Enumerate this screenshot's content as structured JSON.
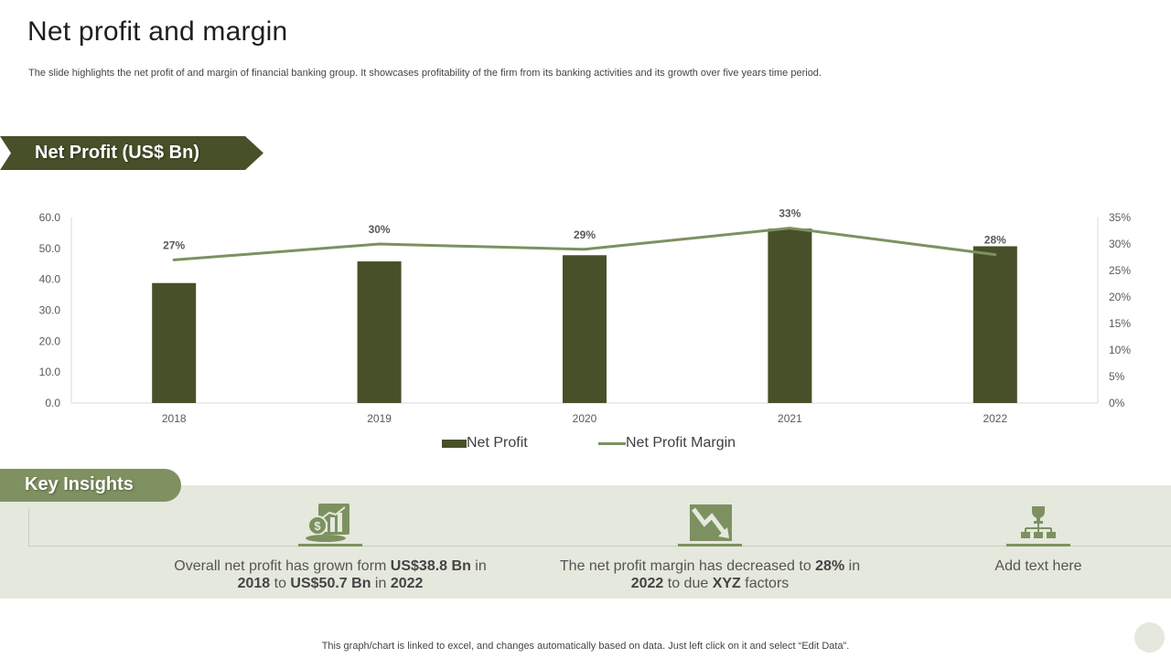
{
  "header": {
    "title": "Net profit and margin",
    "subtitle": "The slide highlights the net profit of and margin of financial banking group. It showcases profitability of the firm from its banking activities and its growth over five years time period."
  },
  "section": {
    "banner": "Net Profit (US$ Bn)"
  },
  "chart_data": {
    "type": "bar",
    "categories": [
      "2018",
      "2019",
      "2020",
      "2021",
      "2022"
    ],
    "series": [
      {
        "name": "Net Profit",
        "type": "bar",
        "axis": "left",
        "values": [
          38.8,
          45.8,
          47.8,
          56.4,
          50.7
        ],
        "color": "#475029"
      },
      {
        "name": "Net Profit Margin",
        "type": "line",
        "axis": "right",
        "values": [
          27,
          30,
          29,
          33,
          28
        ],
        "color": "#7d9160"
      }
    ],
    "data_labels": [
      "27%",
      "30%",
      "29%",
      "33%",
      "28%"
    ],
    "y_left": {
      "ticks": [
        "0.0",
        "10.0",
        "20.0",
        "30.0",
        "40.0",
        "50.0",
        "60.0"
      ],
      "lim": [
        0,
        60
      ]
    },
    "y_right": {
      "ticks": [
        "0%",
        "5%",
        "10%",
        "15%",
        "20%",
        "25%",
        "30%",
        "35%"
      ],
      "lim": [
        0,
        35
      ]
    },
    "grid": false,
    "legend": "bottom-center"
  },
  "insights": {
    "title": "Key Insights",
    "items": [
      {
        "icon": "money-growth-icon",
        "parts": [
          {
            "t": "Overall net profit has grown form ",
            "b": false
          },
          {
            "t": "US$38.8 Bn",
            "b": true
          },
          {
            "t": " in ",
            "b": false
          },
          {
            "t": "2018",
            "b": true
          },
          {
            "t": " to ",
            "b": false
          },
          {
            "t": "US$50.7 Bn",
            "b": true
          },
          {
            "t": " in ",
            "b": false
          },
          {
            "t": "2022",
            "b": true
          }
        ]
      },
      {
        "icon": "downtrend-arrow-icon",
        "parts": [
          {
            "t": "The net profit margin has decreased to ",
            "b": false
          },
          {
            "t": "28%",
            "b": true
          },
          {
            "t": " in ",
            "b": false
          },
          {
            "t": "2022",
            "b": true
          },
          {
            "t": " to due ",
            "b": false
          },
          {
            "t": "XYZ",
            "b": true
          },
          {
            "t": " factors",
            "b": false
          }
        ]
      },
      {
        "icon": "trophy-hierarchy-icon",
        "parts": [
          {
            "t": "Add text here",
            "b": false
          }
        ]
      }
    ]
  },
  "footer": {
    "note": "This graph/chart is linked to excel, and changes automatically based on data. Just left click on it and select “Edit Data”."
  },
  "colors": {
    "accent_dark": "#475029",
    "accent_mid": "#7d9160",
    "band": "#e5e8dd"
  }
}
